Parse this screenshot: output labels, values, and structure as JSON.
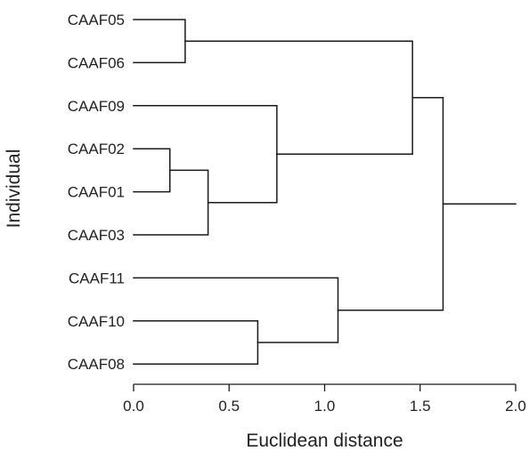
{
  "chart_data": {
    "type": "dendrogram",
    "orientation": "horizontal",
    "title": "",
    "xlabel": "Euclidean distance",
    "ylabel": "Individual",
    "xlim": [
      0.0,
      2.0
    ],
    "xticks": [
      "0.0",
      "0.5",
      "1.0",
      "1.5",
      "2.0"
    ],
    "leaves": [
      "CAAF05",
      "CAAF06",
      "CAAF09",
      "CAAF02",
      "CAAF01",
      "CAAF03",
      "CAAF11",
      "CAAF10",
      "CAAF08"
    ],
    "merges": [
      {
        "id": "n1",
        "children": [
          "CAAF02",
          "CAAF01"
        ],
        "height": 0.19
      },
      {
        "id": "n2",
        "children": [
          "CAAF05",
          "CAAF06"
        ],
        "height": 0.27
      },
      {
        "id": "n3",
        "children": [
          "n1",
          "CAAF03"
        ],
        "height": 0.39
      },
      {
        "id": "n4",
        "children": [
          "CAAF10",
          "CAAF08"
        ],
        "height": 0.65
      },
      {
        "id": "n5",
        "children": [
          "CAAF09",
          "n3"
        ],
        "height": 0.75
      },
      {
        "id": "n6",
        "children": [
          "CAAF11",
          "n4"
        ],
        "height": 1.07
      },
      {
        "id": "n7",
        "children": [
          "n2",
          "n5"
        ],
        "height": 1.46
      },
      {
        "id": "n8",
        "children": [
          "n7",
          "n6"
        ],
        "height": 1.62
      }
    ],
    "root_line_to": 2.0,
    "line_color": "#1a1a1a"
  }
}
